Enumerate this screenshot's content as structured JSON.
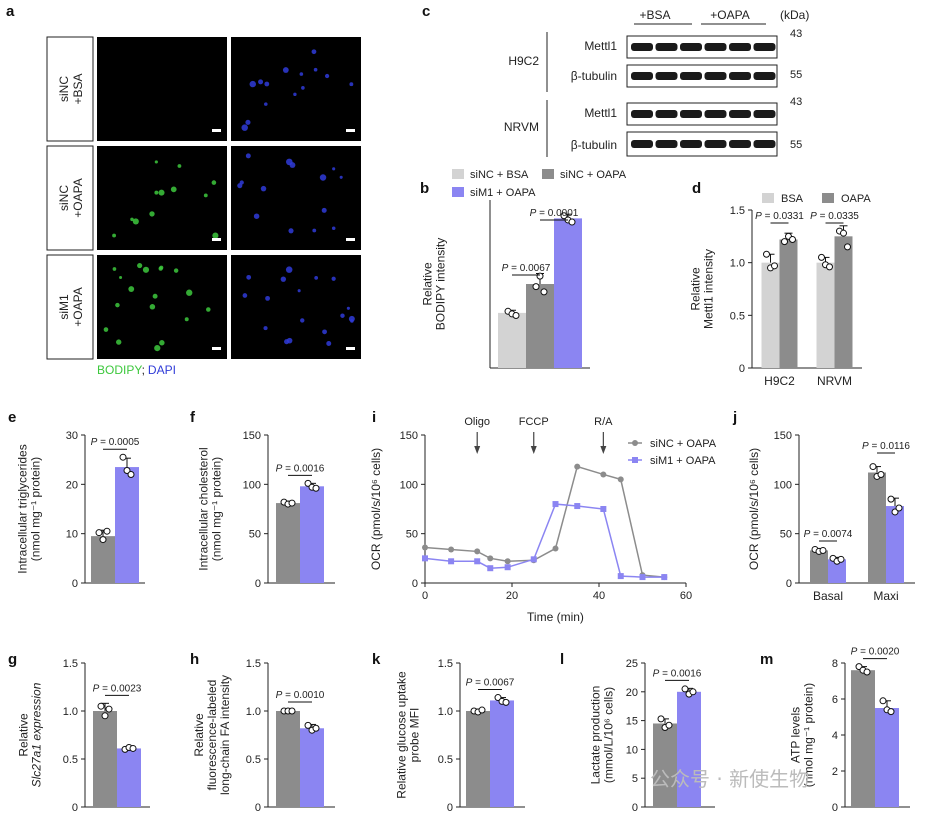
{
  "panel_letters": {
    "a": "a",
    "b": "b",
    "c": "c",
    "d": "d",
    "e": "e",
    "f": "f",
    "g": "g",
    "h": "h",
    "i": "i",
    "j": "j",
    "k": "k",
    "l": "l",
    "m": "m"
  },
  "colors": {
    "gray": "#8c8c8c",
    "lightgray": "#d3d3d3",
    "purple": "#8b85f2",
    "green": "#3dc83d",
    "blue": "#2f3bd8"
  },
  "panel_a": {
    "row_labels": [
      [
        "siNC",
        "+BSA"
      ],
      [
        "siNC",
        "+OAPA"
      ],
      [
        "siM1",
        "+OAPA"
      ]
    ],
    "legend_bodipy": "BODIPY",
    "legend_sep": ";",
    "legend_dapi": "DAPI"
  },
  "panel_c": {
    "kda": "(kDa)",
    "group_labels": [
      "+BSA",
      "+OAPA"
    ],
    "cell_lines": [
      "H9C2",
      "NRVM"
    ],
    "proteins": [
      "Mettl1",
      "β-tubulin"
    ],
    "mw": [
      "43",
      "55"
    ]
  },
  "chart_data": [
    {
      "panel": "b",
      "type": "bar",
      "categories": [
        "siNC + BSA",
        "siNC + OAPA",
        "siM1 + OAPA"
      ],
      "values": [
        1.05,
        1.6,
        2.85
      ],
      "errors": [
        0.05,
        0.2,
        0.08
      ],
      "points": [
        [
          1.08,
          1.03,
          1.0
        ],
        [
          1.55,
          1.75,
          1.45
        ],
        [
          2.9,
          2.82,
          2.78
        ]
      ],
      "ylabel": [
        "Relative",
        "BODIPY intensity"
      ],
      "yticks": [],
      "ylim": [
        0,
        3.2
      ],
      "legend": [
        "siNC + BSA",
        "siNC + OAPA",
        "siM1 + OAPA"
      ],
      "pvalues": [
        {
          "text": "P = 0.0067",
          "from": 0,
          "to": 1
        },
        {
          "text": "P = 0.0001",
          "from": 1,
          "to": 2
        }
      ]
    },
    {
      "panel": "d",
      "type": "bar",
      "categories": [
        "H9C2",
        "NRVM"
      ],
      "series": [
        {
          "name": "BSA",
          "values": [
            1.0,
            1.0
          ],
          "errors": [
            0.08,
            0.05
          ],
          "points": [
            [
              1.08,
              0.95,
              0.97
            ],
            [
              1.05,
              0.98,
              0.96
            ]
          ]
        },
        {
          "name": "OAPA",
          "values": [
            1.22,
            1.25
          ],
          "errors": [
            0.06,
            0.1
          ],
          "points": [
            [
              1.2,
              1.25,
              1.22
            ],
            [
              1.3,
              1.28,
              1.15
            ]
          ]
        }
      ],
      "ylabel": [
        "Relative",
        "Mettl1 intensity"
      ],
      "yticks": [
        "0",
        "0.5",
        "1.0",
        "1.5"
      ],
      "ytick_vals": [
        0,
        0.5,
        1.0,
        1.5
      ],
      "ylim": [
        0,
        1.5
      ],
      "pvalues": [
        {
          "text": "P = 0.0331",
          "group": 0
        },
        {
          "text": "P = 0.0335",
          "group": 1
        }
      ]
    },
    {
      "panel": "e",
      "type": "bar",
      "categories": [
        "siNC + OAPA",
        "siM1 + OAPA"
      ],
      "values": [
        9.5,
        23.5
      ],
      "errors": [
        1.2,
        1.8
      ],
      "points": [
        [
          10.2,
          8.8,
          10.5
        ],
        [
          25.5,
          22.8,
          22.0
        ]
      ],
      "ylabel": [
        "Intracellular triglycerides",
        "(nmol mg⁻¹ protein)"
      ],
      "yticks": [
        "0",
        "10",
        "20",
        "30"
      ],
      "ytick_vals": [
        0,
        10,
        20,
        30
      ],
      "ylim": [
        0,
        30
      ],
      "pvalues": [
        {
          "text": "P = 0.0005",
          "from": 0,
          "to": 1
        }
      ]
    },
    {
      "panel": "f",
      "type": "bar",
      "categories": [
        "siNC + OAPA",
        "siM1 + OAPA"
      ],
      "values": [
        81,
        98
      ],
      "errors": [
        2,
        3
      ],
      "points": [
        [
          82,
          80,
          81
        ],
        [
          101,
          97,
          96
        ]
      ],
      "ylabel": [
        "Intracellular cholesterol",
        "(nmol mg⁻¹ protein)"
      ],
      "yticks": [
        "0",
        "50",
        "100",
        "150"
      ],
      "ytick_vals": [
        0,
        50,
        100,
        150
      ],
      "ylim": [
        0,
        150
      ],
      "pvalues": [
        {
          "text": "P = 0.0016",
          "from": 0,
          "to": 1
        }
      ]
    },
    {
      "panel": "i",
      "type": "line",
      "x": [
        0,
        6,
        12,
        15,
        19,
        25,
        30,
        35,
        41,
        45,
        50,
        55
      ],
      "series": [
        {
          "name": "siNC + OAPA",
          "values": [
            36,
            34,
            32,
            25,
            22,
            23,
            35,
            118,
            110,
            105,
            8,
            6
          ]
        },
        {
          "name": "siM1 + OAPA",
          "values": [
            25,
            22,
            22,
            15,
            16,
            24,
            80,
            78,
            75,
            7,
            6,
            6
          ]
        }
      ],
      "xlabel": "Time (min)",
      "ylabel": "OCR (pmol/s/10⁶ cells)",
      "xticks": [
        "0",
        "20",
        "40",
        "60"
      ],
      "xtick_vals": [
        0,
        20,
        40,
        60
      ],
      "yticks": [
        "0",
        "50",
        "100",
        "150"
      ],
      "ytick_vals": [
        0,
        50,
        100,
        150
      ],
      "xlim": [
        0,
        60
      ],
      "ylim": [
        0,
        150
      ],
      "annotations": [
        {
          "text": "Oligo",
          "x": 12
        },
        {
          "text": "FCCP",
          "x": 25
        },
        {
          "text": "R/A",
          "x": 41
        }
      ]
    },
    {
      "panel": "j",
      "type": "bar",
      "categories": [
        "Basal",
        "Maxi"
      ],
      "series": [
        {
          "name": "siNC + OAPA",
          "values": [
            33,
            112
          ],
          "errors": [
            2,
            6
          ],
          "points": [
            [
              34,
              32,
              33
            ],
            [
              118,
              108,
              110
            ]
          ]
        },
        {
          "name": "siM1 + OAPA",
          "values": [
            24,
            78
          ],
          "errors": [
            2,
            8
          ],
          "points": [
            [
              25,
              22,
              24
            ],
            [
              85,
              72,
              76
            ]
          ]
        }
      ],
      "ylabel": "OCR (pmol/s/10⁶ cells)",
      "yticks": [
        "0",
        "50",
        "100",
        "150"
      ],
      "ytick_vals": [
        0,
        50,
        100,
        150
      ],
      "ylim": [
        0,
        150
      ],
      "pvalues": [
        {
          "text": "P = 0.0074",
          "group": 0
        },
        {
          "text": "P = 0.0116",
          "group": 1
        }
      ]
    },
    {
      "panel": "g",
      "type": "bar",
      "categories": [
        "siNC + OAPA",
        "siM1 + OAPA"
      ],
      "values": [
        1.0,
        0.61
      ],
      "errors": [
        0.08,
        0.02
      ],
      "points": [
        [
          1.05,
          0.95,
          1.02
        ],
        [
          0.6,
          0.62,
          0.61
        ]
      ],
      "ylabel": [
        "Relative",
        "Slc27a1 expression"
      ],
      "yticks": [
        "0",
        "0.5",
        "1.0",
        "1.5"
      ],
      "ytick_vals": [
        0,
        0.5,
        1.0,
        1.5
      ],
      "ylim": [
        0,
        1.5
      ],
      "pvalues": [
        {
          "text": "P = 0.0023",
          "from": 0,
          "to": 1
        }
      ]
    },
    {
      "panel": "h",
      "type": "bar",
      "categories": [
        "siNC + OAPA",
        "siM1 + OAPA"
      ],
      "values": [
        1.0,
        0.82
      ],
      "errors": [
        0.01,
        0.04
      ],
      "points": [
        [
          1.0,
          1.0,
          1.0
        ],
        [
          0.85,
          0.8,
          0.82
        ]
      ],
      "ylabel": [
        "Relative",
        "fluorescence-labeled",
        "long-chain FA intensity"
      ],
      "yticks": [
        "0",
        "0.5",
        "1.0",
        "1.5"
      ],
      "ytick_vals": [
        0,
        0.5,
        1.0,
        1.5
      ],
      "ylim": [
        0,
        1.5
      ],
      "pvalues": [
        {
          "text": "P = 0.0010",
          "from": 0,
          "to": 1
        }
      ]
    },
    {
      "panel": "k",
      "type": "bar",
      "categories": [
        "siNC + OAPA",
        "siM1 + OAPA"
      ],
      "values": [
        1.0,
        1.11
      ],
      "errors": [
        0.02,
        0.03
      ],
      "points": [
        [
          1.0,
          0.99,
          1.01
        ],
        [
          1.14,
          1.1,
          1.09
        ]
      ],
      "ylabel": [
        "Relative glucose uptake",
        "probe MFI"
      ],
      "yticks": [
        "0",
        "0.5",
        "1.0",
        "1.5"
      ],
      "ytick_vals": [
        0,
        0.5,
        1.0,
        1.5
      ],
      "ylim": [
        0,
        1.5
      ],
      "pvalues": [
        {
          "text": "P = 0.0067",
          "from": 0,
          "to": 1
        }
      ]
    },
    {
      "panel": "l",
      "type": "bar",
      "categories": [
        "siNC + OAPA",
        "siM1 + OAPA"
      ],
      "values": [
        14.5,
        20.0
      ],
      "errors": [
        0.8,
        0.6
      ],
      "points": [
        [
          15.3,
          13.8,
          14.2
        ],
        [
          20.5,
          19.6,
          20.0
        ]
      ],
      "ylabel": [
        "Lactate production",
        "(mmol/L/10⁶ cells)"
      ],
      "yticks": [
        "0",
        "5",
        "10",
        "15",
        "20",
        "25"
      ],
      "ytick_vals": [
        0,
        5,
        10,
        15,
        20,
        25
      ],
      "ylim": [
        0,
        25
      ],
      "pvalues": [
        {
          "text": "P = 0.0016",
          "from": 0,
          "to": 1
        }
      ]
    },
    {
      "panel": "m",
      "type": "bar",
      "categories": [
        "siNC + OAPA",
        "siM1 + OAPA"
      ],
      "values": [
        7.6,
        5.5
      ],
      "errors": [
        0.2,
        0.4
      ],
      "points": [
        [
          7.8,
          7.6,
          7.5
        ],
        [
          5.9,
          5.4,
          5.3
        ]
      ],
      "ylabel": [
        "ATP levels",
        "(nmol mg⁻¹ protein)"
      ],
      "yticks": [
        "0",
        "2",
        "4",
        "6",
        "8"
      ],
      "ytick_vals": [
        0,
        2,
        4,
        6,
        8
      ],
      "ylim": [
        0,
        8
      ],
      "pvalues": [
        {
          "text": "P = 0.0020",
          "from": 0,
          "to": 1
        }
      ]
    }
  ],
  "watermark": "公众号 · 新使生物"
}
